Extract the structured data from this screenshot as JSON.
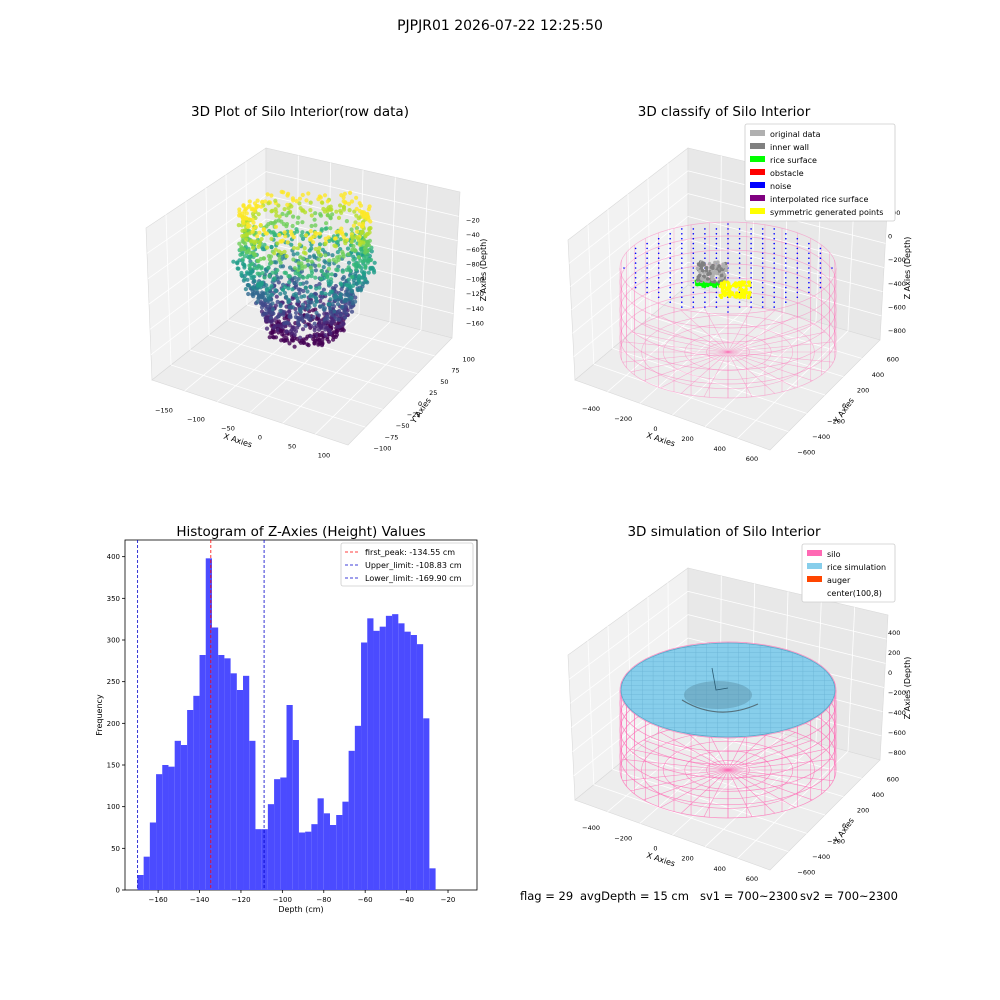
{
  "figure": {
    "suptitle": "PJPJR01 2026-07-22 12:25:50"
  },
  "status_bar": {
    "flag": "flag = 29",
    "avg_depth": "avgDepth = 15 cm",
    "sv1": "sv1 = 700~2300",
    "sv2": "sv2 = 700~2300"
  },
  "colors": {
    "hist_bar": "#4b4bff",
    "first_peak_line": "#ff0000",
    "limit_line": "#0000cc",
    "silo": "#ff69b4",
    "rice_simulation": "#87ceeb",
    "auger": "#ff4500",
    "original_data": "#b0b0b0",
    "inner_wall": "#808080",
    "rice_surface": "#00ff00",
    "obstacle": "#ff0000",
    "noise": "#0000ff",
    "interpolated_rice_surface": "#800080",
    "symmetric_generated_points": "#ffff00"
  },
  "chart_data": [
    {
      "type": "scatter",
      "title": "3D Plot of Silo Interior(row data)",
      "xlabel": "X Axies",
      "ylabel": "Y Axies",
      "zlabel": "Z Axies (Depth)",
      "x_ticks": [
        "−150",
        "−100",
        "−50",
        "0",
        "50",
        "100"
      ],
      "y_ticks": [
        "−100",
        "−75",
        "−50",
        "−25",
        "0",
        "25",
        "50",
        "75",
        "100"
      ],
      "z_ticks": [
        "−20",
        "−40",
        "−60",
        "−80",
        "−100",
        "−120",
        "−140",
        "−160"
      ],
      "xlim": [
        -150,
        110
      ],
      "ylim": [
        -100,
        100
      ],
      "zlim": [
        -175,
        -10
      ],
      "colormap": "viridis"
    },
    {
      "type": "scatter",
      "title": "3D classify of Silo Interior",
      "xlabel": "X Axies",
      "ylabel": "Y Axies",
      "zlabel": "Z Axies (Depth)",
      "x_ticks": [
        "−400",
        "−200",
        "0",
        "200",
        "400",
        "600"
      ],
      "y_ticks": [
        "−600",
        "−400",
        "−200",
        "0",
        "200",
        "400",
        "600"
      ],
      "z_ticks": [
        "200",
        "0",
        "−200",
        "−400",
        "−600",
        "−800"
      ],
      "legend": [
        "original data",
        "inner wall",
        "rice surface",
        "obstacle",
        "noise",
        "interpolated rice surface",
        "symmetric generated points"
      ],
      "legend_position": "top-right"
    },
    {
      "type": "bar",
      "title": "Histogram of Z-Axies (Height) Values",
      "xlabel": "Depth (cm)",
      "ylabel": "Frequency",
      "x_ticks": [
        -160,
        -140,
        -120,
        -100,
        -80,
        -60,
        -40,
        -20
      ],
      "y_ticks": [
        0,
        50,
        100,
        150,
        200,
        250,
        300,
        350,
        400
      ],
      "xlim": [
        -176,
        -6
      ],
      "ylim": [
        0,
        420
      ],
      "bin_start": -170,
      "bin_width": 3,
      "values": [
        18,
        40,
        81,
        139,
        150,
        148,
        179,
        174,
        216,
        233,
        282,
        398,
        315,
        282,
        278,
        260,
        240,
        257,
        179,
        73,
        73,
        103,
        133,
        135,
        222,
        180,
        69,
        70,
        79,
        110,
        92,
        78,
        90,
        106,
        167,
        197,
        297,
        326,
        311,
        316,
        329,
        331,
        320,
        310,
        306,
        295,
        206,
        26
      ],
      "vlines": [
        {
          "label": "first_peak: -134.55 cm",
          "x": -134.55,
          "color": "red"
        },
        {
          "label": "Upper_limit: -108.83 cm",
          "x": -108.83,
          "color": "blue"
        },
        {
          "label": "Lower_limit: -169.90 cm",
          "x": -169.9,
          "color": "blue"
        }
      ],
      "legend_position": "top-right"
    },
    {
      "type": "surface",
      "title": "3D simulation of Silo Interior",
      "xlabel": "X Axies",
      "ylabel": "Y Axies",
      "zlabel": "Z Axies (Depth)",
      "x_ticks": [
        "−400",
        "−200",
        "0",
        "200",
        "400",
        "600"
      ],
      "y_ticks": [
        "−600",
        "−400",
        "−200",
        "0",
        "200",
        "400",
        "600"
      ],
      "z_ticks": [
        "400",
        "200",
        "0",
        "−200",
        "−400",
        "−600",
        "−800"
      ],
      "legend": [
        "silo",
        "rice simulation",
        "auger",
        "center(100,8)"
      ],
      "legend_position": "top-right"
    }
  ]
}
